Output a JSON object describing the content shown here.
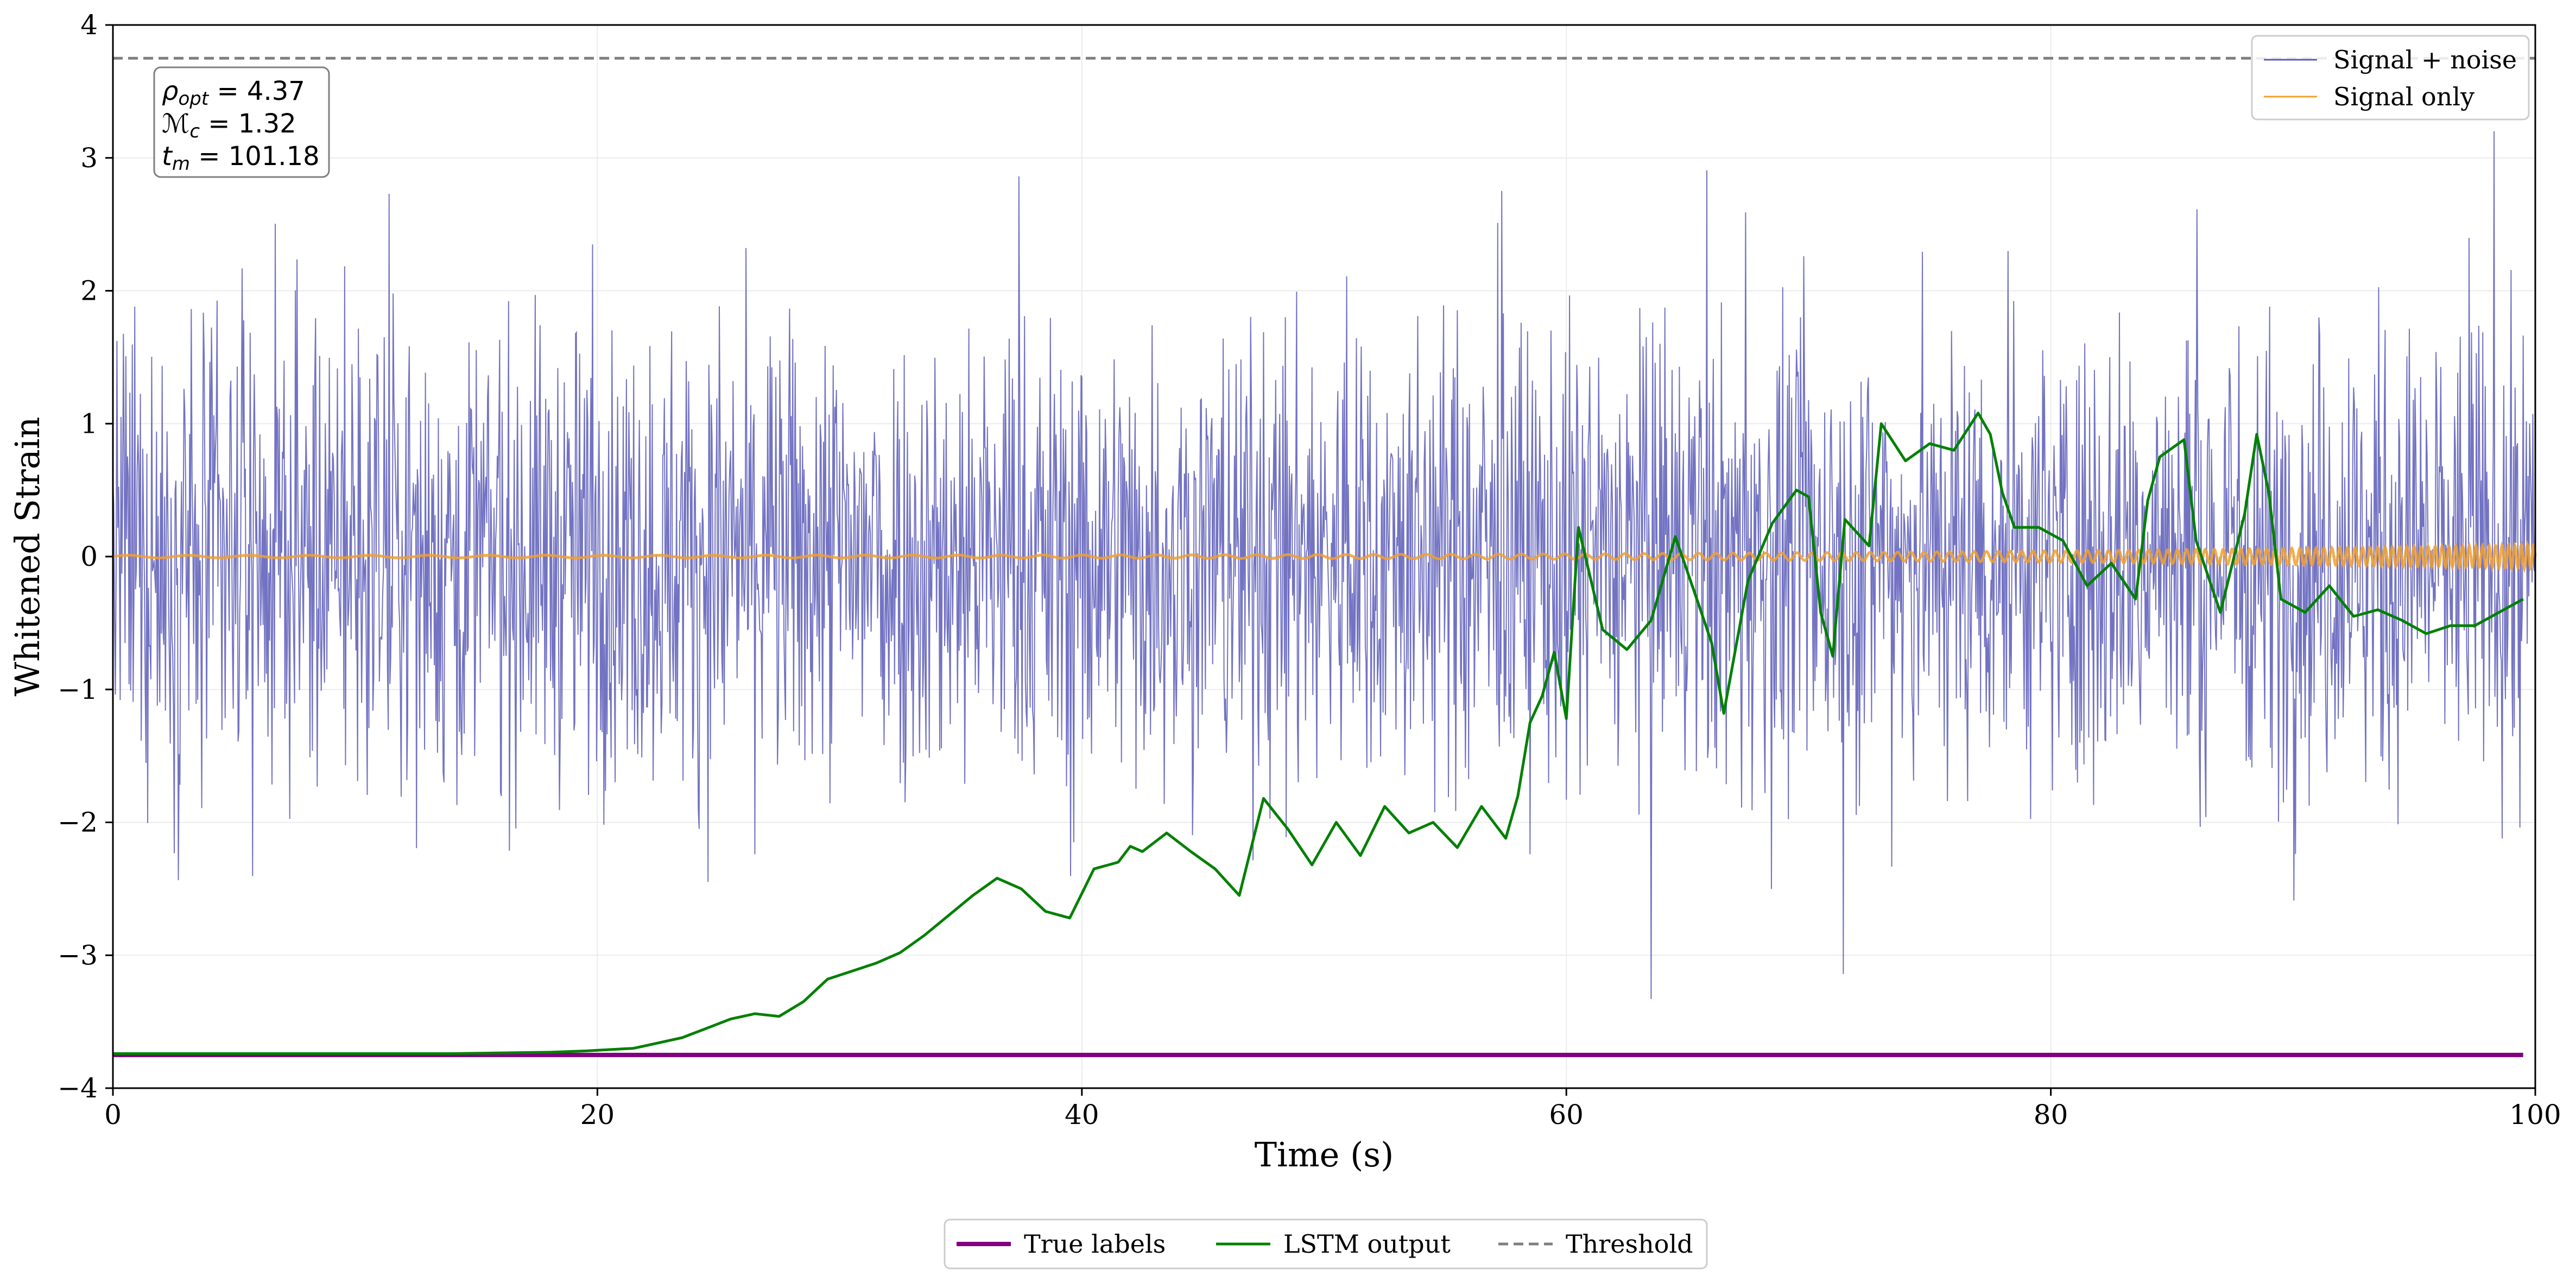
{
  "chart_data": {
    "type": "line",
    "xlabel": "Time (s)",
    "ylabel": "Whitened Strain",
    "xlim": [
      0,
      100
    ],
    "ylim": [
      -4,
      4
    ],
    "xticks": [
      0,
      20,
      40,
      60,
      80,
      100
    ],
    "xtick_labels": [
      "0",
      "20",
      "40",
      "60",
      "80",
      "100"
    ],
    "yticks": [
      -4,
      -3,
      -2,
      -1,
      0,
      1,
      2,
      3,
      4
    ],
    "ytick_labels": [
      "−4",
      "−3",
      "−2",
      "−1",
      "0",
      "1",
      "2",
      "3",
      "4"
    ],
    "grid": true,
    "threshold": 3.75,
    "annotation": {
      "lines": [
        {
          "symbol": "ρ",
          "sub": "opt",
          "value": " = 4.37"
        },
        {
          "symbol": "ℳ",
          "sub": "c",
          "value": " = 1.32"
        },
        {
          "symbol": "t",
          "sub": "m",
          "value": " = 101.18"
        }
      ]
    },
    "legend_upper": {
      "placement": "top-right",
      "entries": [
        "Signal + noise",
        "Signal only"
      ]
    },
    "legend_lower": {
      "placement": "bottom-center",
      "entries": [
        "True labels",
        "LSTM output",
        "Threshold"
      ]
    },
    "series": [
      {
        "name": "Signal + noise",
        "color": "#5b5bb8",
        "kind": "noise",
        "noise_std": 0.85,
        "noise_max": 3.2,
        "noise_min": -3.45
      },
      {
        "name": "Signal only",
        "color": "#f0a030",
        "kind": "chirp",
        "amp_start": 0.01,
        "amp_end": 0.09
      },
      {
        "name": "True labels",
        "color": "#800080",
        "value": -3.75
      },
      {
        "name": "LSTM output",
        "color": "#008000",
        "x": [
          0,
          5,
          10,
          14,
          18,
          19.5,
          20.5,
          21.5,
          22.5,
          23.5,
          24.5,
          25.5,
          26.5,
          27.5,
          28.5,
          29.5,
          30.5,
          31.5,
          32.5,
          33.5,
          34.5,
          35.5,
          36.5,
          37.5,
          38.5,
          39.5,
          40.5,
          41.5,
          42,
          42.5,
          43.5,
          44.5,
          45.5,
          46.5,
          47.5,
          48.5,
          49.5,
          50.5,
          51.5,
          52.5,
          53.5,
          54.5,
          55.5,
          56.5,
          57.5,
          58,
          58.5,
          59,
          59.5,
          60,
          60.5,
          61.5,
          62.5,
          63.5,
          64.5,
          65.5,
          66,
          66.5,
          67.5,
          68.5,
          69.5,
          70,
          70.5,
          71,
          71.5,
          72.5,
          73,
          74,
          75,
          76,
          77,
          77.5,
          78,
          78.5,
          79.5,
          80.5,
          81.5,
          82.5,
          83.5,
          84,
          84.5,
          85.5,
          86,
          87,
          88,
          88.5,
          89,
          89.5,
          90.5,
          91.5,
          92.5,
          93.5,
          94.5,
          95.5,
          96.5,
          97.5,
          98.5,
          99.5
        ],
        "y": [
          -3.74,
          -3.74,
          -3.74,
          -3.74,
          -3.73,
          -3.72,
          -3.71,
          -3.7,
          -3.66,
          -3.62,
          -3.55,
          -3.48,
          -3.44,
          -3.46,
          -3.35,
          -3.18,
          -3.12,
          -3.06,
          -2.98,
          -2.85,
          -2.7,
          -2.55,
          -2.42,
          -2.5,
          -2.67,
          -2.72,
          -2.35,
          -2.3,
          -2.18,
          -2.22,
          -2.08,
          -2.22,
          -2.35,
          -2.55,
          -1.82,
          -2.05,
          -2.32,
          -2.0,
          -2.25,
          -1.88,
          -2.08,
          -2.0,
          -2.19,
          -1.88,
          -2.12,
          -1.8,
          -1.25,
          -1.05,
          -0.72,
          -1.22,
          0.22,
          -0.55,
          -0.7,
          -0.48,
          0.15,
          -0.38,
          -0.65,
          -1.18,
          -0.18,
          0.25,
          0.5,
          0.45,
          -0.42,
          -0.75,
          0.28,
          0.08,
          1.0,
          0.72,
          0.85,
          0.8,
          1.08,
          0.92,
          0.48,
          0.22,
          0.22,
          0.12,
          -0.22,
          -0.05,
          -0.32,
          0.42,
          0.75,
          0.88,
          0.12,
          -0.42,
          0.32,
          0.92,
          0.48,
          -0.32,
          -0.42,
          -0.22,
          -0.45,
          -0.4,
          -0.48,
          -0.58,
          -0.52,
          -0.52,
          -0.42,
          -0.32
        ]
      }
    ]
  }
}
